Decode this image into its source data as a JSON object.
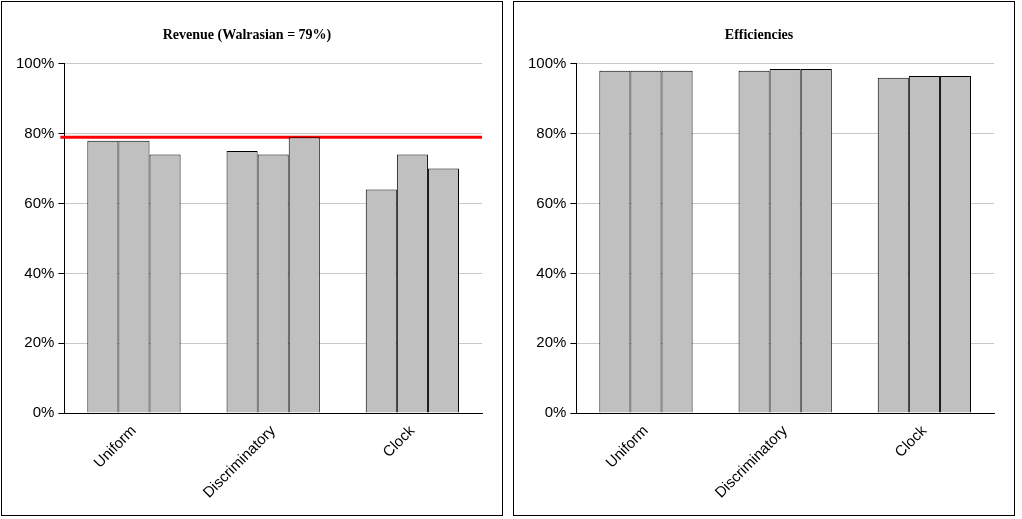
{
  "chart_data": [
    {
      "type": "bar",
      "title": "Revenue (Walrasian = 79%)",
      "categories": [
        "Uniform",
        "Discriminatory",
        "Clock"
      ],
      "series": [
        {
          "color": "#c0c0c0",
          "values": [
            78,
            75,
            64
          ]
        },
        {
          "color": "#c0c0c0",
          "values": [
            78,
            74,
            74
          ]
        },
        {
          "color": "#c0c0c0",
          "values": [
            74,
            79,
            70
          ]
        }
      ],
      "ylim": [
        0,
        100
      ],
      "yticks": [
        {
          "value": 0,
          "label": "0%"
        },
        {
          "value": 20,
          "label": "20%"
        },
        {
          "value": 40,
          "label": "40%"
        },
        {
          "value": 60,
          "label": "60%"
        },
        {
          "value": 80,
          "label": "80%"
        },
        {
          "value": 100,
          "label": "100%"
        }
      ],
      "grid": "y",
      "ref_lines": [
        {
          "axis": "y",
          "value": 79,
          "color": "#ff0000"
        }
      ]
    },
    {
      "type": "bar",
      "title": "Efficiencies",
      "categories": [
        "Uniform",
        "Discriminatory",
        "Clock"
      ],
      "series": [
        {
          "color": "#c0c0c0",
          "values": [
            98,
            98,
            96
          ]
        },
        {
          "color": "#c0c0c0",
          "values": [
            98,
            98.5,
            96.5
          ]
        },
        {
          "color": "#c0c0c0",
          "values": [
            98,
            98.5,
            96.5
          ]
        }
      ],
      "ylim": [
        0,
        100
      ],
      "yticks": [
        {
          "value": 0,
          "label": "0%"
        },
        {
          "value": 20,
          "label": "20%"
        },
        {
          "value": 40,
          "label": "40%"
        },
        {
          "value": 60,
          "label": "60%"
        },
        {
          "value": 80,
          "label": "80%"
        },
        {
          "value": 100,
          "label": "100%"
        }
      ],
      "grid": "y"
    }
  ]
}
